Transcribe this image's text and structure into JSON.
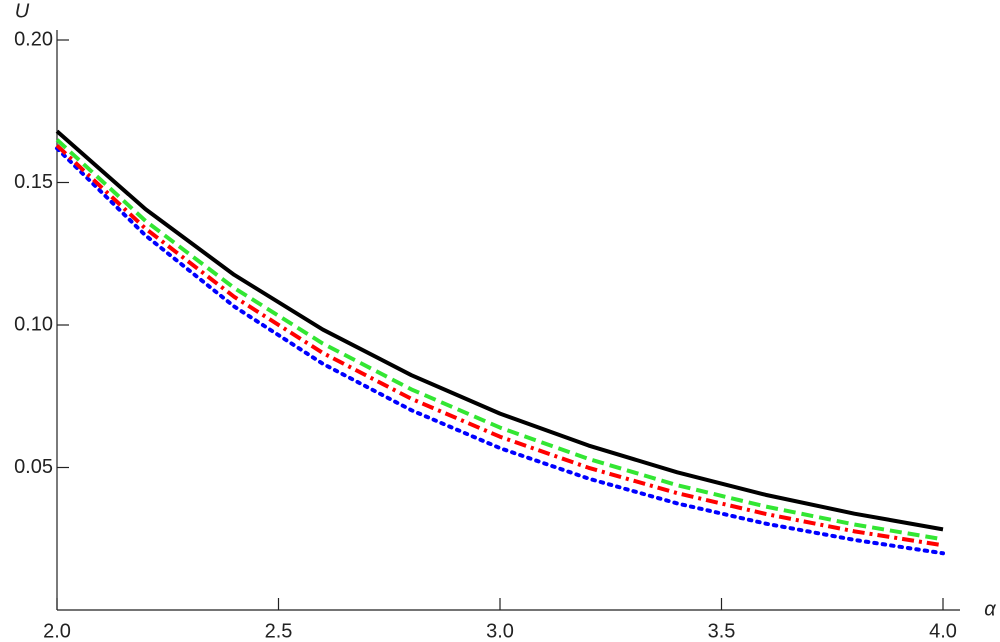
{
  "chart_data": {
    "type": "line",
    "x_label": "α",
    "y_label": "U",
    "x": [
      2,
      2.2,
      2.4,
      2.6,
      2.8,
      3,
      3.2,
      3.4,
      3.6,
      3.8,
      4
    ],
    "series": [
      {
        "color": "#000000",
        "dash": "solid",
        "values": [
          0.168,
          0.1406,
          0.1176,
          0.0984,
          0.0824,
          0.0689,
          0.0577,
          0.0483,
          0.0404,
          0.0338,
          0.0283
        ]
      },
      {
        "color": "#33e633",
        "dash": "dashed",
        "values": [
          0.165,
          0.1365,
          0.113,
          0.0935,
          0.0774,
          0.064,
          0.053,
          0.0438,
          0.0363,
          0.03,
          0.0248
        ]
      },
      {
        "color": "#ff0000",
        "dash": "dashdot",
        "values": [
          0.163,
          0.1338,
          0.1099,
          0.0902,
          0.0741,
          0.0608,
          0.0499,
          0.041,
          0.0337,
          0.0276,
          0.0227
        ]
      },
      {
        "color": "#0000ff",
        "dash": "dotted",
        "values": [
          0.162,
          0.1314,
          0.1065,
          0.0864,
          0.0701,
          0.0568,
          0.0461,
          0.0374,
          0.0303,
          0.0246,
          0.0199
        ]
      }
    ],
    "xlim": [
      2,
      4
    ],
    "ylim": [
      0,
      0.2
    ],
    "xticks": [
      {
        "value": 2,
        "label": "2.0"
      },
      {
        "value": 2.5,
        "label": "2.5"
      },
      {
        "value": 3,
        "label": "3.0"
      },
      {
        "value": 3.5,
        "label": "3.5"
      },
      {
        "value": 4,
        "label": "4.0"
      }
    ],
    "yticks": [
      0.05,
      {
        "value": 0.1,
        "label": "0.10"
      },
      0.15,
      {
        "value": 0.2,
        "label": "0.20"
      }
    ],
    "grid": false
  }
}
